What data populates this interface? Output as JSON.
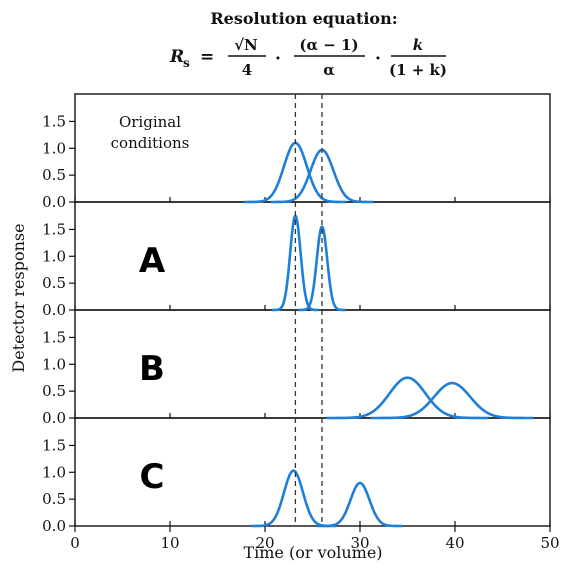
{
  "header": {
    "title": "Resolution equation:",
    "lhs": "R",
    "lhs_sub": "s",
    "equals": "=",
    "term1_num": "√N",
    "term1_den": "4",
    "dot": "·",
    "term2_num": "(α − 1)",
    "term2_den": "α",
    "term3_num": "k",
    "term3_den": "(1 + k)"
  },
  "chart_data": {
    "type": "line",
    "xlabel": "Time (or volume)",
    "ylabel": "Detector response",
    "xlim": [
      0,
      50
    ],
    "ylim": [
      0,
      1.75
    ],
    "x_ticks": [
      "0",
      "10",
      "20",
      "30",
      "40",
      "50"
    ],
    "y_ticks": [
      "0.0",
      "0.5",
      "1.0",
      "1.5"
    ],
    "reference_lines_x": [
      23.2,
      26.0
    ],
    "line_color": "#1f7fd6",
    "panels": [
      {
        "label": "",
        "annotation": [
          "Original",
          "conditions"
        ],
        "peaks": [
          {
            "center": 23.2,
            "height": 1.1,
            "width": 1.2
          },
          {
            "center": 26.0,
            "height": 0.97,
            "width": 1.2
          }
        ]
      },
      {
        "label": "A",
        "annotation": [],
        "peaks": [
          {
            "center": 23.2,
            "height": 1.75,
            "width": 0.55
          },
          {
            "center": 26.0,
            "height": 1.55,
            "width": 0.55
          }
        ]
      },
      {
        "label": "B",
        "annotation": [],
        "peaks": [
          {
            "center": 35.0,
            "height": 0.75,
            "width": 1.9
          },
          {
            "center": 39.7,
            "height": 0.65,
            "width": 1.9
          }
        ]
      },
      {
        "label": "C",
        "annotation": [],
        "peaks": [
          {
            "center": 23.0,
            "height": 1.03,
            "width": 1.0
          },
          {
            "center": 30.0,
            "height": 0.8,
            "width": 1.0
          }
        ]
      }
    ]
  }
}
